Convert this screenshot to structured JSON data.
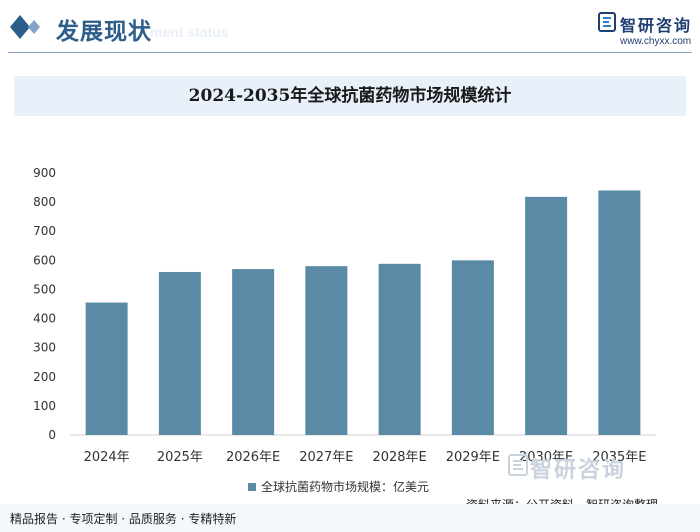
{
  "header": {
    "section_title": "发展现状",
    "section_subtitle": "ment status",
    "logo_name": "智研咨询",
    "logo_url": "www.chyxx.com",
    "brand_color": "#2d5d8a"
  },
  "chart_data": {
    "type": "bar",
    "title": "2024-2035年全球抗菌药物市场规模统计",
    "categories": [
      "2024年",
      "2025年",
      "2026年E",
      "2027年E",
      "2028年E",
      "2029年E",
      "2030年E",
      "2035年E"
    ],
    "series": [
      {
        "name": "全球抗菌药物市场规模：亿美元",
        "values": [
          455,
          560,
          570,
          580,
          588,
          600,
          818,
          840
        ],
        "color": "#5b8aa6"
      }
    ],
    "xlabel": "",
    "ylabel": "",
    "ylim": [
      0,
      900
    ],
    "yticks": [
      0,
      100,
      200,
      300,
      400,
      500,
      600,
      700,
      800,
      900
    ],
    "grid": false,
    "legend_position": "bottom"
  },
  "watermark": {
    "name": "智研咨询"
  },
  "source": "资料来源：公开资料、智研咨询整理",
  "footer": {
    "text": "精品报告 · 专项定制 · 品质服务 · 专精特新"
  }
}
